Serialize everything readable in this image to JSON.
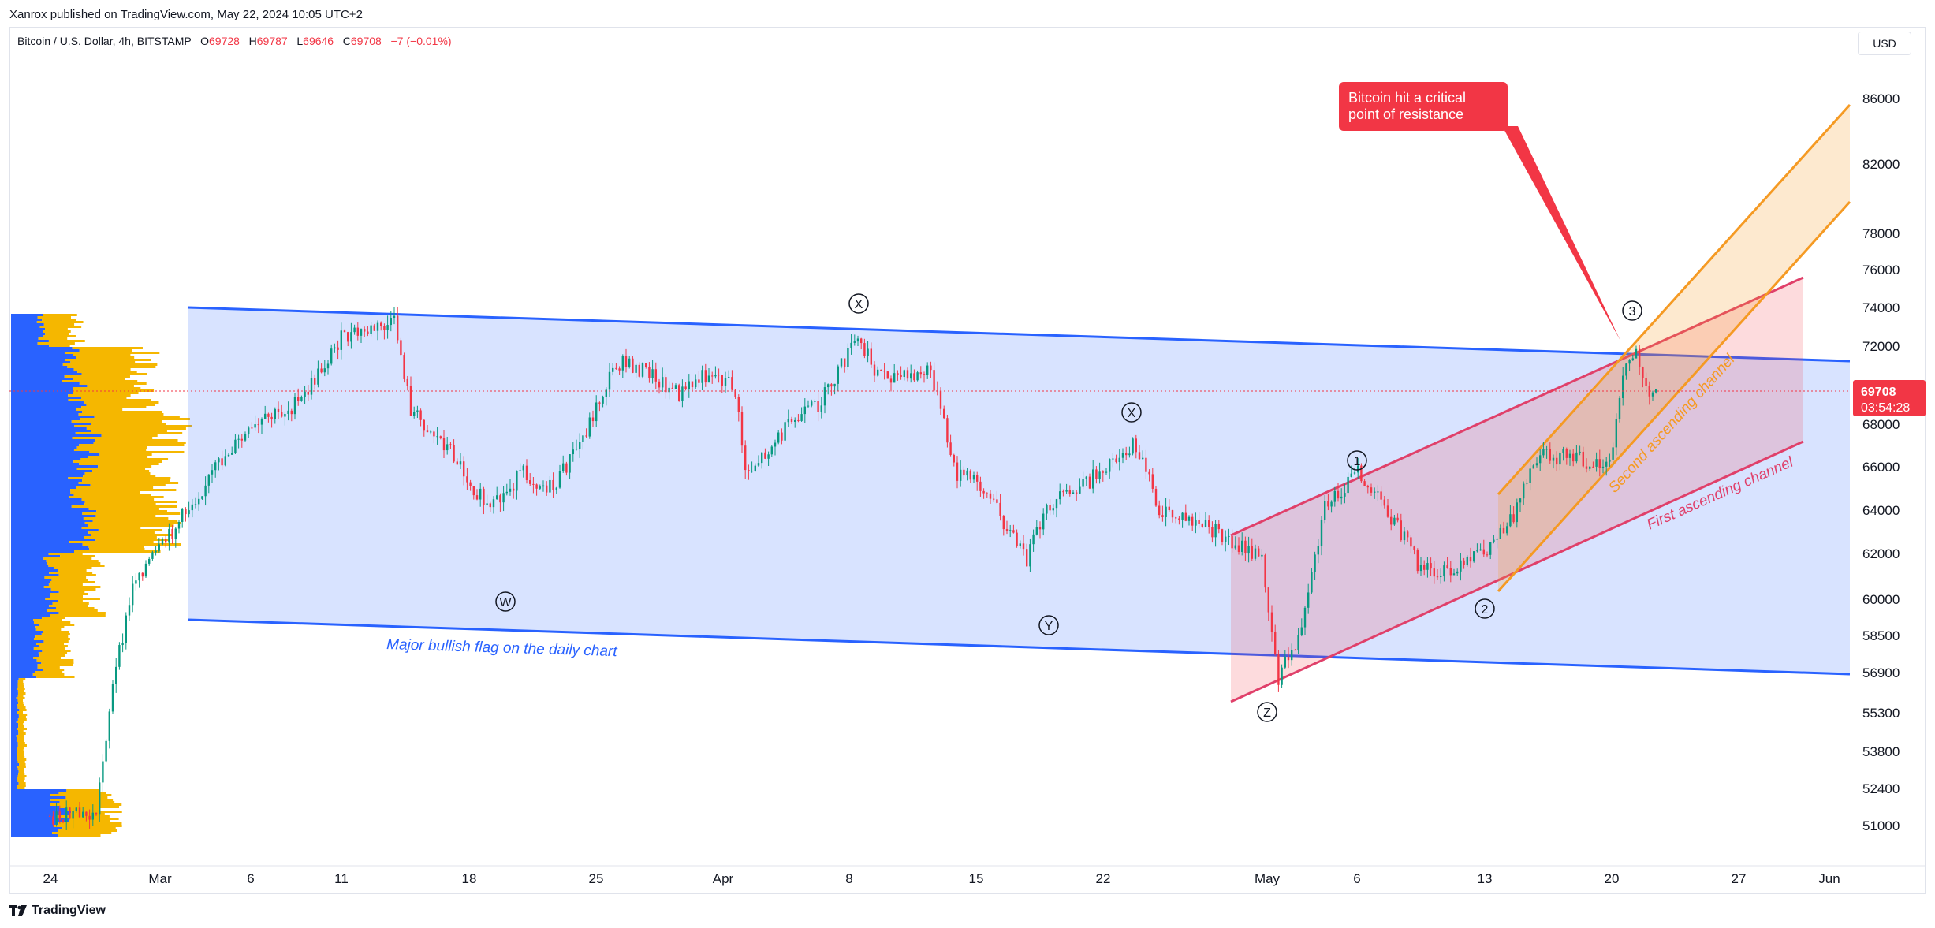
{
  "header": {
    "published": "Xanrox published on TradingView.com, May 22, 2024 10:05 UTC+2"
  },
  "legend": {
    "symbol": "Bitcoin / U.S. Dollar, 4h, BITSTAMP",
    "o_label": "O",
    "o_value": "69728",
    "h_label": "H",
    "h_value": "69787",
    "l_label": "L",
    "l_value": "69646",
    "c_label": "C",
    "c_value": "69708",
    "change": "−7 (−0.01%)"
  },
  "currency": "USD",
  "price_axis": {
    "ticks": [
      "86000",
      "82000",
      "78000",
      "76000",
      "74000",
      "72000",
      "68000",
      "66000",
      "64000",
      "62000",
      "60000",
      "58500",
      "56900",
      "55300",
      "53800",
      "52400",
      "51000"
    ],
    "current_price": "69708",
    "countdown": "03:54:28"
  },
  "time_axis": {
    "ticks": [
      "24",
      "Mar",
      "6",
      "11",
      "18",
      "25",
      "Apr",
      "8",
      "15",
      "22",
      "May",
      "6",
      "13",
      "20",
      "27",
      "Jun"
    ]
  },
  "annotations": {
    "callout": "Bitcoin hit a critical point of resistance",
    "callout_line1": "Bitcoin hit a critical",
    "callout_line2": "point of resistance",
    "flag_label": "Major bullish flag on the daily chart",
    "second_channel": "Second ascending channel",
    "first_channel": "First ascending channel",
    "wave_labels": [
      "X",
      "X",
      "W",
      "Y",
      "Z",
      "1",
      "2",
      "3"
    ]
  },
  "colors": {
    "flag": "#2962ff",
    "first_channel": "#e0406a",
    "second_channel": "#f59a23",
    "bull": "#089981",
    "bear": "#f23645",
    "volume_profile_up": "#2962ff",
    "volume_profile_down": "#f5b700"
  },
  "footer": {
    "brand": "TradingView"
  }
}
